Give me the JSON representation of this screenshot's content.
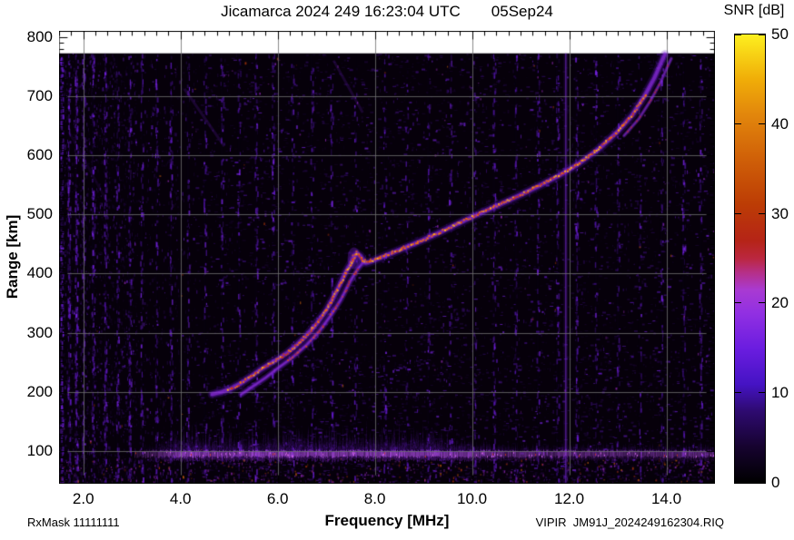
{
  "title": {
    "main": "Jicamarca 2024 249 16:23:04 UTC",
    "date": "05Sep24"
  },
  "footer": {
    "left": "RxMask 11111111",
    "right": "VIPIR  JM91J_2024249162304.RIQ"
  },
  "chart_data": {
    "type": "heatmap",
    "title": "Jicamarca 2024 249 16:23:04 UTC",
    "subtitle": "05Sep24",
    "xlabel": "Frequency [MHz]",
    "ylabel": "Range [km]",
    "colorbar_label": "SNR [dB]",
    "xlim": [
      1.5,
      15.0
    ],
    "ylim": [
      45,
      810
    ],
    "data_top_km": 772,
    "grid": true,
    "x_major_ticks": [
      2,
      4,
      6,
      8,
      10,
      12,
      14
    ],
    "x_tick_labels": [
      "2.0",
      "4.0",
      "6.0",
      "8.0",
      "10.0",
      "12.0",
      "14.0"
    ],
    "x_minor_step": 0.25,
    "y_major_ticks": [
      100,
      200,
      300,
      400,
      500,
      600,
      700,
      800
    ],
    "y_tick_labels": [
      "100",
      "200",
      "300",
      "400",
      "500",
      "600",
      "700",
      "800"
    ],
    "y_minor_step": 10,
    "colorbar": {
      "range": [
        0,
        50
      ],
      "ticks": [
        0,
        10,
        20,
        30,
        40,
        50
      ],
      "tick_labels": [
        "0",
        "10",
        "20",
        "30",
        "40",
        "50"
      ],
      "gradient": [
        [
          0.0,
          "#000000"
        ],
        [
          0.08,
          "#16032f"
        ],
        [
          0.16,
          "#2e0a70"
        ],
        [
          0.22,
          "#4513c4"
        ],
        [
          0.3,
          "#6b1de0"
        ],
        [
          0.38,
          "#9230e2"
        ],
        [
          0.43,
          "#a93ad2"
        ],
        [
          0.47,
          "#b62f85"
        ],
        [
          0.5,
          "#bb2740"
        ],
        [
          0.54,
          "#b52417"
        ],
        [
          0.62,
          "#bc3c05"
        ],
        [
          0.72,
          "#cf5f08"
        ],
        [
          0.82,
          "#e2860c"
        ],
        [
          0.9,
          "#f0ad08"
        ],
        [
          1.0,
          "#fdef1f"
        ]
      ]
    },
    "trace_colors": {
      "halo": "#6a18d0",
      "halo2": "#8526e8",
      "halo3": "#9d34f2",
      "core": "#f06c08",
      "bright": "#ffb414",
      "deep": "#cf3a0a",
      "red": "#c22a12"
    },
    "o_trace": [
      [
        4.65,
        196
      ],
      [
        4.85,
        200
      ],
      [
        5.05,
        206
      ],
      [
        5.25,
        215
      ],
      [
        5.45,
        226
      ],
      [
        5.65,
        238
      ],
      [
        5.85,
        248
      ],
      [
        6.05,
        258
      ],
      [
        6.2,
        266
      ],
      [
        6.4,
        280
      ],
      [
        6.6,
        296
      ],
      [
        6.8,
        315
      ],
      [
        7.0,
        338
      ],
      [
        7.15,
        360
      ],
      [
        7.3,
        385
      ],
      [
        7.4,
        402
      ],
      [
        7.5,
        416
      ],
      [
        7.57,
        428
      ],
      [
        7.63,
        434
      ],
      [
        7.7,
        430
      ],
      [
        7.76,
        422
      ],
      [
        7.82,
        418
      ],
      [
        7.9,
        420
      ],
      [
        8.0,
        423
      ],
      [
        8.3,
        433
      ],
      [
        8.6,
        443
      ],
      [
        9.0,
        457
      ],
      [
        9.4,
        472
      ],
      [
        9.8,
        488
      ],
      [
        10.2,
        503
      ],
      [
        10.6,
        518
      ],
      [
        11.0,
        533
      ],
      [
        11.4,
        549
      ],
      [
        11.8,
        566
      ],
      [
        12.2,
        586
      ],
      [
        12.6,
        610
      ],
      [
        13.0,
        640
      ],
      [
        13.3,
        668
      ],
      [
        13.55,
        700
      ],
      [
        13.75,
        730
      ],
      [
        13.9,
        758
      ],
      [
        13.97,
        770
      ]
    ],
    "x_trace": [
      [
        5.25,
        196
      ],
      [
        5.5,
        210
      ],
      [
        5.75,
        224
      ],
      [
        6.0,
        240
      ],
      [
        6.3,
        258
      ],
      [
        6.6,
        280
      ],
      [
        6.85,
        302
      ],
      [
        7.1,
        330
      ],
      [
        7.3,
        356
      ],
      [
        7.5,
        388
      ],
      [
        7.65,
        408
      ],
      [
        7.75,
        418
      ]
    ],
    "top_split": {
      "from_mhz": 12.95,
      "df": 0.13,
      "dkm": -7
    },
    "core_range_mhz": [
      4.95,
      13.58
    ],
    "x_core_range_mhz": [
      6.2,
      7.7
    ],
    "e_band": {
      "start_mhz": 3.05,
      "full_from_mhz": 4.0,
      "fade_after_mhz": 9.5,
      "tail_level": 0.55,
      "center_km": 96
    },
    "streaks": [
      [
        [
          4.08,
          712
        ],
        [
          4.9,
          615
        ]
      ],
      [
        [
          7.15,
          760
        ],
        [
          7.75,
          672
        ]
      ],
      [
        [
          1.7,
          640
        ],
        [
          2.5,
          520
        ]
      ]
    ],
    "noise": {
      "seed": 7,
      "rfi_lines": [
        11.93
      ],
      "stripes": [
        [
          1.55,
          0.9
        ],
        [
          1.7,
          0.7
        ],
        [
          1.85,
          0.8
        ],
        [
          2.0,
          0.6
        ],
        [
          2.2,
          0.55
        ],
        [
          2.45,
          0.6
        ],
        [
          2.7,
          0.5
        ],
        [
          2.95,
          0.55
        ],
        [
          3.2,
          0.45
        ],
        [
          3.5,
          0.4
        ],
        [
          3.8,
          0.45
        ],
        [
          4.15,
          0.35
        ],
        [
          4.5,
          0.3
        ],
        [
          4.85,
          0.35
        ],
        [
          5.2,
          0.3
        ],
        [
          5.55,
          0.45
        ],
        [
          5.9,
          0.4
        ],
        [
          6.3,
          0.3
        ],
        [
          6.7,
          0.35
        ],
        [
          7.1,
          0.3
        ],
        [
          7.6,
          0.25
        ],
        [
          8.2,
          0.3
        ],
        [
          8.65,
          0.25
        ],
        [
          9.1,
          0.3
        ],
        [
          9.55,
          0.25
        ],
        [
          10.05,
          0.3
        ],
        [
          10.45,
          0.45
        ],
        [
          10.9,
          0.3
        ],
        [
          11.35,
          0.3
        ],
        [
          11.75,
          0.35
        ],
        [
          12.15,
          0.5
        ],
        [
          12.55,
          0.3
        ],
        [
          13.0,
          0.3
        ],
        [
          13.45,
          0.25
        ],
        [
          13.9,
          0.3
        ],
        [
          14.35,
          0.35
        ],
        [
          14.7,
          0.4
        ]
      ]
    }
  }
}
